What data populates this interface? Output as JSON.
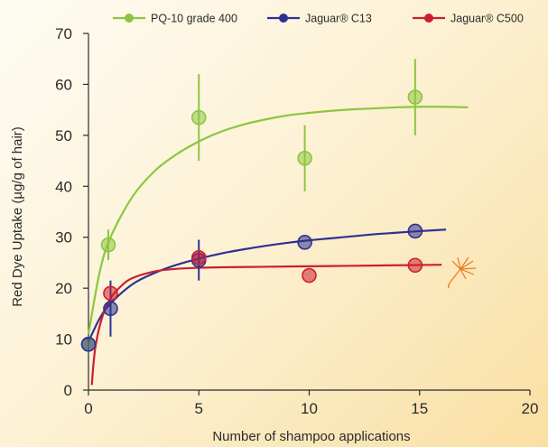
{
  "chart_data": {
    "type": "scatter",
    "title": "",
    "xlabel": "Number of shampoo applications",
    "ylabel": "Red Dye Uptake (µg/g of hair)",
    "xlim": [
      0,
      20
    ],
    "ylim": [
      0,
      70
    ],
    "x_ticks": [
      0,
      5,
      10,
      15,
      20
    ],
    "y_ticks": [
      0,
      10,
      20,
      30,
      40,
      50,
      60,
      70
    ],
    "grid": false,
    "legend_position": "top",
    "series": [
      {
        "name": "PQ-10 grade 400",
        "color": "#8cc63f",
        "points": [
          {
            "x": 0,
            "y": 9
          },
          {
            "x": 0.9,
            "y": 28.5,
            "err": 3
          },
          {
            "x": 5,
            "y": 53.5,
            "err": 8.5
          },
          {
            "x": 9.8,
            "y": 45.5,
            "err": 6.5
          },
          {
            "x": 14.8,
            "y": 57.5,
            "err": 7.5
          }
        ],
        "fit": {
          "x": [
            0,
            0.5,
            1,
            2,
            3,
            4,
            5,
            6,
            7,
            8,
            9,
            10,
            11,
            12,
            13,
            14,
            15,
            16,
            17.2
          ],
          "y": [
            11,
            23,
            30,
            38,
            43,
            46.3,
            48.8,
            50.7,
            52.1,
            53.1,
            53.9,
            54.4,
            54.8,
            55.1,
            55.3,
            55.5,
            55.6,
            55.6,
            55.5
          ]
        }
      },
      {
        "name": "Jaguar® C13",
        "color": "#2e3192",
        "points": [
          {
            "x": 0,
            "y": 9
          },
          {
            "x": 1,
            "y": 16,
            "err": 5.5
          },
          {
            "x": 5,
            "y": 25.5,
            "err": 4
          },
          {
            "x": 9.8,
            "y": 29
          },
          {
            "x": 14.8,
            "y": 31.2
          }
        ],
        "fit": {
          "x": [
            0,
            0.5,
            1,
            2,
            3,
            4,
            5,
            6,
            7,
            8,
            9,
            10,
            11,
            12,
            13,
            14,
            15,
            16.2
          ],
          "y": [
            9.5,
            14,
            17,
            20.8,
            23,
            24.6,
            25.8,
            26.8,
            27.6,
            28.3,
            28.9,
            29.4,
            29.8,
            30.2,
            30.6,
            30.9,
            31.2,
            31.5
          ]
        }
      },
      {
        "name": "Jaguar® C500",
        "color": "#cc1f2d",
        "points": [
          {
            "x": 1,
            "y": 19
          },
          {
            "x": 5,
            "y": 26
          },
          {
            "x": 10,
            "y": 22.5
          },
          {
            "x": 14.8,
            "y": 24.5
          }
        ],
        "fit": {
          "x": [
            0.15,
            0.3,
            0.6,
            1,
            1.5,
            2,
            3,
            4,
            5,
            6,
            8,
            10,
            12,
            14,
            16
          ],
          "y": [
            1,
            8,
            14,
            18,
            20.5,
            22,
            23.3,
            23.8,
            24,
            24.1,
            24.2,
            24.3,
            24.4,
            24.5,
            24.6
          ]
        }
      }
    ]
  }
}
